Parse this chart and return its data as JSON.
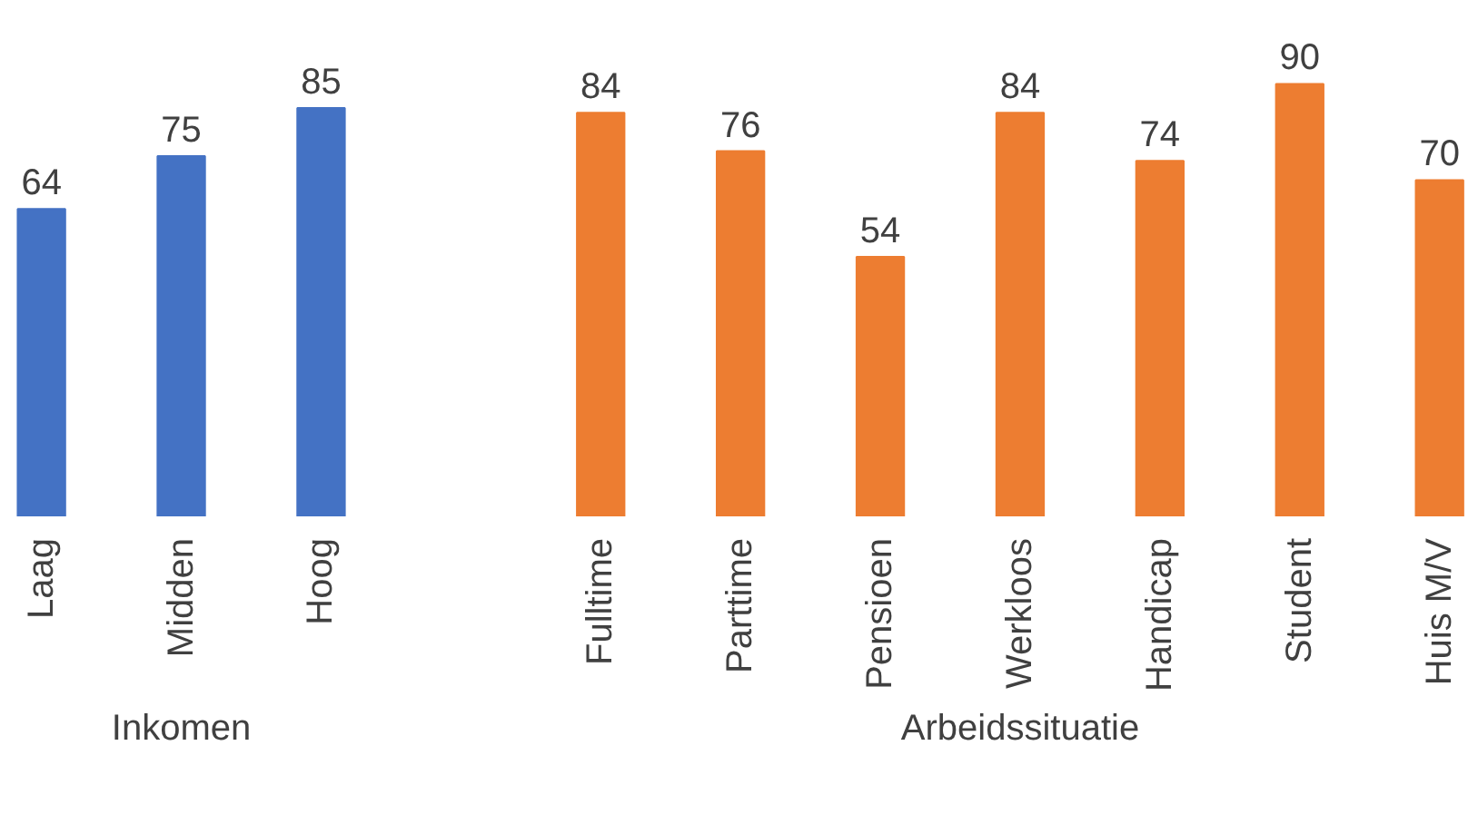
{
  "chart_data": {
    "type": "bar",
    "categories": [
      "Laag",
      "Midden",
      "Hoog",
      null,
      "Fulltime",
      "Parttime",
      "Pensioen",
      "Werkloos",
      "Handicap",
      "Student",
      "Huis M/V"
    ],
    "values": [
      64,
      75,
      85,
      null,
      84,
      76,
      54,
      84,
      74,
      90,
      70
    ],
    "colors": [
      "#4472c4",
      "#4472c4",
      "#4472c4",
      null,
      "#ed7d31",
      "#ed7d31",
      "#ed7d31",
      "#ed7d31",
      "#ed7d31",
      "#ed7d31",
      "#ed7d31"
    ],
    "data_labels": true,
    "grid": false,
    "annotations": [
      "Inkomen",
      "Arbeidssituatie"
    ]
  }
}
